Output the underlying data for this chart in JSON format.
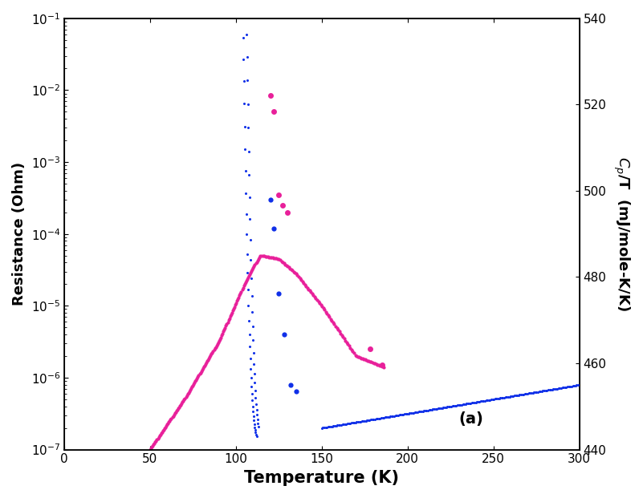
{
  "xlabel": "Temperature (K)",
  "ylabel_left": "Resistance (Ohm)",
  "ylabel_right": "C_p/T  (mJ/mole-K/K)",
  "xlim": [
    0,
    300
  ],
  "ylim_left": [
    1e-07,
    0.1
  ],
  "ylim_right": [
    440,
    540
  ],
  "xticks": [
    0,
    50,
    100,
    150,
    200,
    250,
    300
  ],
  "yticks_right": [
    440,
    460,
    480,
    500,
    520,
    540
  ],
  "annotation": "(a)",
  "blue_color": "#1030e8",
  "pink_color": "#e8209a",
  "background": "#ffffff",
  "blue_cp_T_start": 150,
  "blue_cp_T_end": 300,
  "blue_cp_R_start": 2.5e-07,
  "blue_cp_R_end": 6e-07
}
